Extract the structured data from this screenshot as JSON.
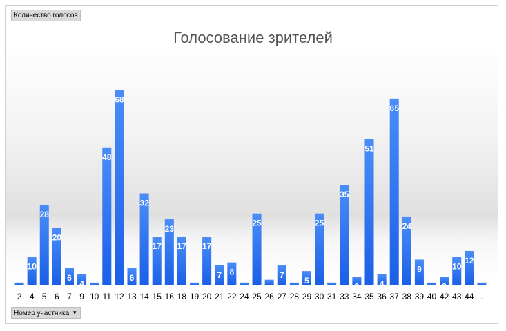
{
  "pivot": {
    "value_field": "Количество голосов",
    "axis_field": "Номер участника",
    "dropdown_icon": "dropdown-arrow-icon"
  },
  "colors": {
    "bar_top": "#4a8df8",
    "bar_bottom": "#1a5fe6",
    "label": "#ffffff"
  },
  "chart_data": {
    "type": "bar",
    "title": "Голосование зрителей",
    "xlabel": "",
    "ylabel": "",
    "ylim": [
      0,
      70
    ],
    "grid": false,
    "legend": "none",
    "categories": [
      "2",
      "4",
      "5",
      "6",
      "7",
      "9",
      "10",
      "11",
      "12",
      "13",
      "14",
      "15",
      "16",
      "18",
      "19",
      "20",
      "21",
      "22",
      "24",
      "25",
      "26",
      "27",
      "28",
      "29",
      "30",
      "31",
      "33",
      "34",
      "35",
      "36",
      "37",
      "38",
      "39",
      "40",
      "42",
      "43",
      "44",
      "."
    ],
    "values": [
      1,
      10,
      28,
      20,
      6,
      4,
      1,
      48,
      68,
      6,
      32,
      17,
      23,
      17,
      1,
      17,
      7,
      8,
      1,
      25,
      2,
      7,
      1,
      5,
      25,
      1,
      35,
      3,
      51,
      4,
      65,
      24,
      9,
      1,
      3,
      10,
      12,
      1
    ]
  }
}
